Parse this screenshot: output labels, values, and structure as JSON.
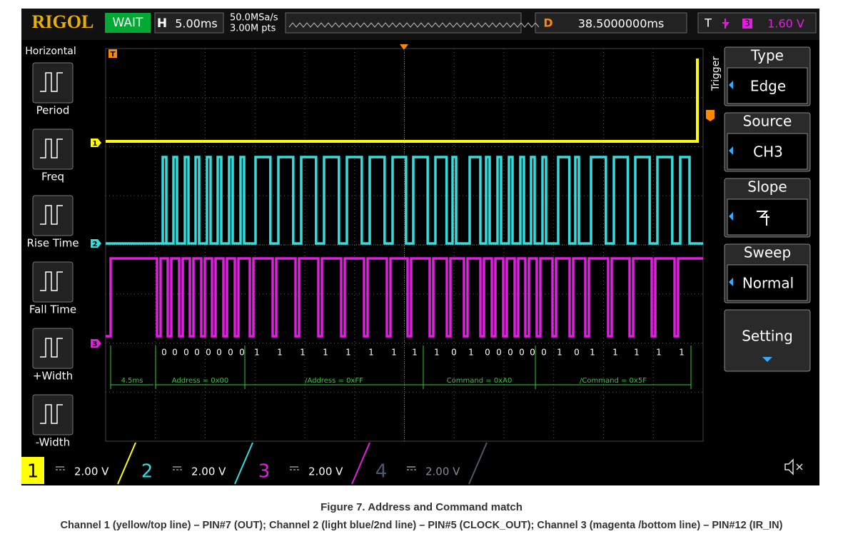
{
  "header": {
    "brand": "RIGOL",
    "status": "WAIT",
    "h_label": "H",
    "timebase": "5.00ms",
    "sample_rate": "50.0MSa/s",
    "memory_depth": "3.00M pts",
    "d_label": "D",
    "delay": "38.5000000ms",
    "t_label": "T",
    "trigger_channel": "3",
    "trigger_level": "1.60 V"
  },
  "left_menu": {
    "title": "Horizontal",
    "items": [
      "Period",
      "Freq",
      "Rise Time",
      "Fall Time",
      "+Width",
      "-Width"
    ]
  },
  "right_menu": {
    "title": "Trigger",
    "items": [
      {
        "label": "Type",
        "value": "Edge"
      },
      {
        "label": "Source",
        "value": "CH3"
      },
      {
        "label": "Slope"
      },
      {
        "label": "Sweep",
        "value": "Normal"
      },
      {
        "label": "Setting"
      }
    ]
  },
  "markers": {
    "trigger": "T",
    "ch1": "1",
    "ch2": "2",
    "ch3": "3"
  },
  "decode": {
    "bits": [
      "0",
      "0",
      "0",
      "0",
      "0",
      "0",
      "0",
      "0",
      "1",
      "1",
      "1",
      "1",
      "1",
      "1",
      "1",
      "1",
      "1",
      "0",
      "1",
      "0",
      "0",
      "0",
      "0",
      "0",
      "0",
      "1",
      "0",
      "1",
      "1",
      "1",
      "1",
      "1"
    ],
    "segments": [
      "4.5ms",
      "Address = 0x00",
      "/Address = 0xFF",
      "Command = 0xA0",
      "/Command = 0x5F"
    ]
  },
  "channels": [
    {
      "number": "1",
      "scale": "2.00 V"
    },
    {
      "number": "2",
      "scale": "2.00 V"
    },
    {
      "number": "3",
      "scale": "2.00 V"
    },
    {
      "number": "4",
      "scale": "2.00 V"
    }
  ],
  "caption": {
    "title": "Figure 7. Address and Command match",
    "text": "Channel 1 (yellow/top line) – PIN#7 (OUT); Channel 2 (light blue/2nd line) – PIN#5 (CLOCK_OUT); Channel 3 (magenta /bottom line) – PIN#12 (IR_IN)"
  }
}
